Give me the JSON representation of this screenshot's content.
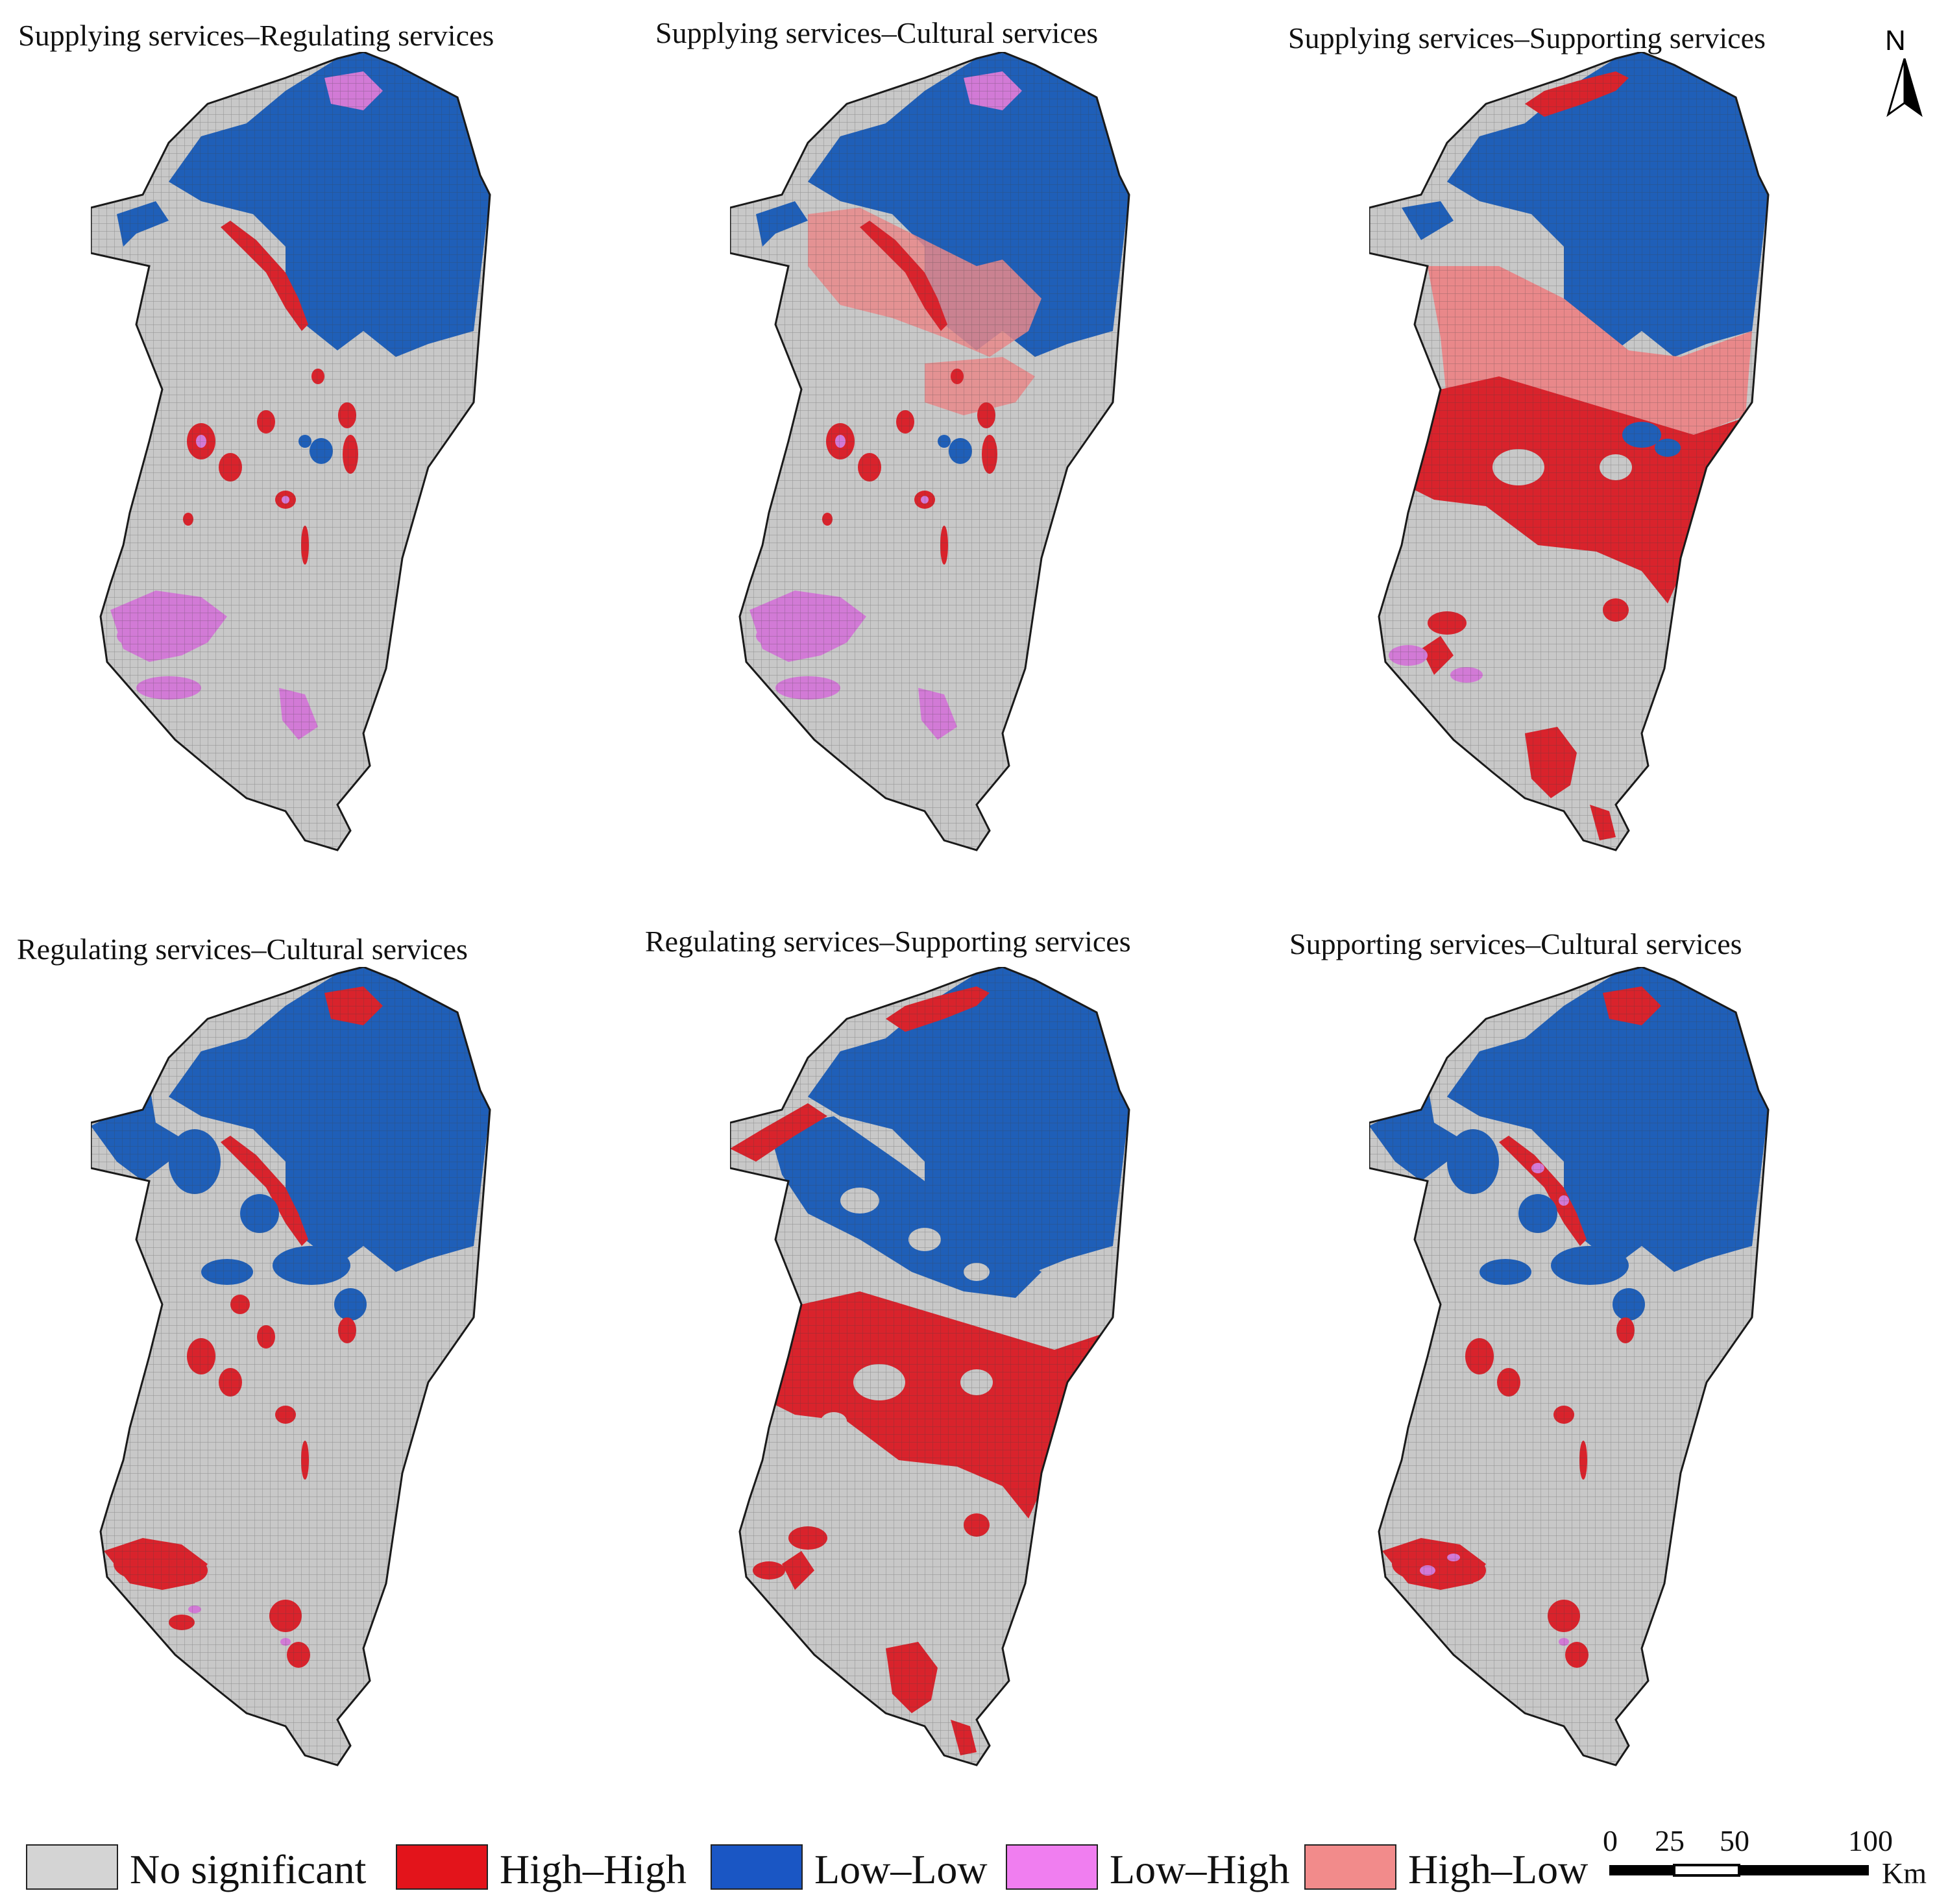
{
  "panels": [
    {
      "title": "Supplying services–Regulating services",
      "variant": "sr"
    },
    {
      "title": "Supplying services–Cultural services",
      "variant": "sc"
    },
    {
      "title": "Supplying services–Supporting services",
      "variant": "ss"
    },
    {
      "title": "Regulating services–Cultural services",
      "variant": "rc"
    },
    {
      "title": "Regulating services–Supporting services",
      "variant": "rs"
    },
    {
      "title": "Supporting services–Cultural services",
      "variant": "sp"
    }
  ],
  "north_arrow": {
    "label": "N"
  },
  "legend": [
    {
      "label": "No significant",
      "color": "#d4d4d4"
    },
    {
      "label": "High–High",
      "color": "#e3141b"
    },
    {
      "label": "Low–Low",
      "color": "#1a56c4"
    },
    {
      "label": "Low–High",
      "color": "#f07ef0"
    },
    {
      "label": "High–Low",
      "color": "#f28b8b"
    }
  ],
  "scale_bar": {
    "ticks": [
      "0",
      "25",
      "50",
      "100"
    ],
    "unit": "Km"
  },
  "colors": {
    "no_sig": "#c8c8c8",
    "high_high": "#d9232c",
    "low_low": "#1f5fb8",
    "low_high": "#d27ad6",
    "high_low": "#e9888a"
  }
}
